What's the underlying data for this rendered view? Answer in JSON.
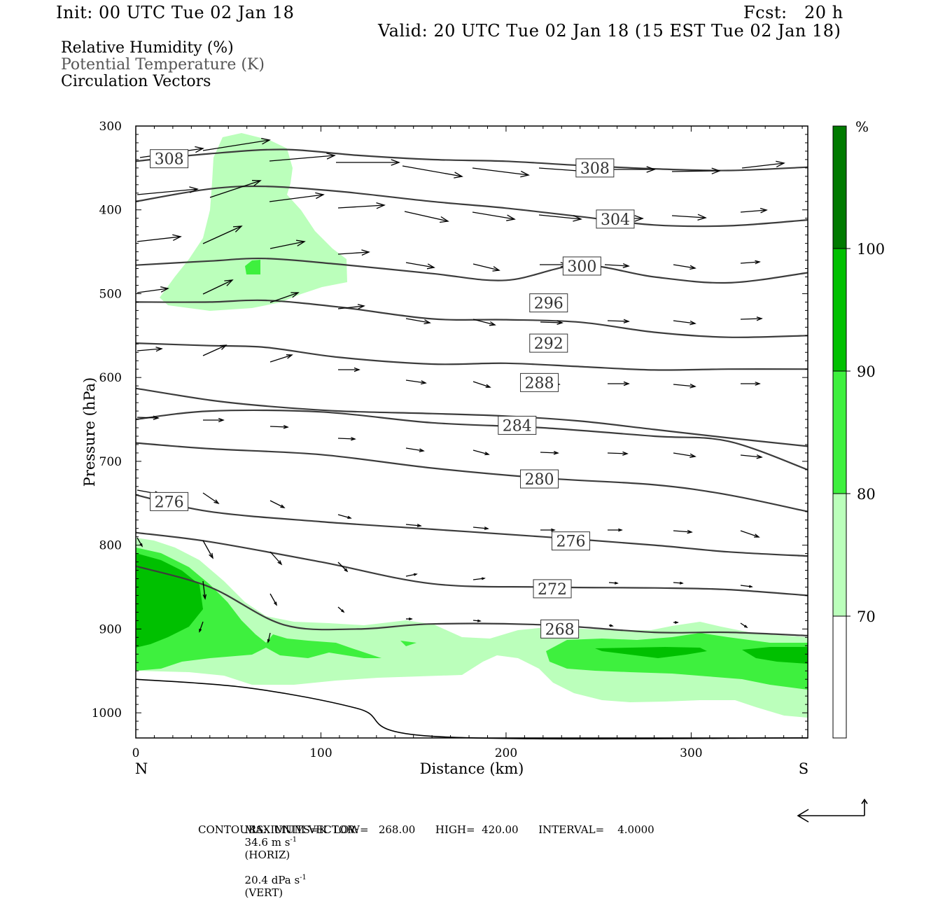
{
  "header": {
    "init": "Init: 00 UTC Tue 02 Jan 18",
    "fcst": "Fcst:   20 h",
    "valid": "Valid: 20 UTC Tue 02 Jan 18 (15 EST Tue 02 Jan 18)"
  },
  "legend": {
    "line1": "Relative Humidity (%)",
    "line2": "Potential Temperature (K)",
    "line3": "Circulation Vectors"
  },
  "footer": {
    "max_vector_label": "MAXIMUM VECTOR:",
    "max_vector_horiz": "34.6 m s",
    "horiz_tag": "(HORIZ)",
    "max_vector_vert": "20.4 dPa s",
    "vert_tag": "(VERT)",
    "contours": "CONTOURS:  UNITS=K  LOW=   268.00      HIGH=  420.00      INTERVAL=    4.0000"
  },
  "colors": {
    "rh70": "#bbffbb",
    "rh80": "#3ef03e",
    "rh90": "#00c000",
    "rh100": "#007a00",
    "theta_line": "#3c3c3c"
  },
  "chart_data": {
    "type": "cross-section",
    "xlabel": "Distance (km)",
    "ylabel": "Pressure (hPa)",
    "xlim": [
      0,
      363
    ],
    "ylim": [
      1030,
      300
    ],
    "x_ticks": [
      0,
      100,
      200,
      300
    ],
    "y_ticks": [
      300,
      400,
      500,
      600,
      700,
      800,
      900,
      1000
    ],
    "end_labels": {
      "left": "N",
      "right": "S"
    },
    "colorbar": {
      "unit": "%",
      "levels": [
        70,
        80,
        90,
        100
      ],
      "colors": [
        "#ffffff",
        "#bbffbb",
        "#3ef03e",
        "#00c000",
        "#007a00"
      ]
    },
    "theta_contours": [
      {
        "label": "308",
        "label_at": [
          18,
          339
        ],
        "points": [
          [
            0,
            342
          ],
          [
            40,
            333
          ],
          [
            80,
            328
          ],
          [
            120,
            335
          ],
          [
            160,
            340
          ],
          [
            200,
            342
          ],
          [
            240,
            347
          ],
          [
            280,
            351
          ],
          [
            320,
            353
          ],
          [
            363,
            349
          ]
        ]
      },
      {
        "label": "308",
        "label_at": [
          248,
          350
        ],
        "points": [
          [
            0,
            342
          ],
          [
            40,
            333
          ],
          [
            80,
            328
          ],
          [
            120,
            335
          ],
          [
            160,
            340
          ],
          [
            200,
            342
          ],
          [
            240,
            347
          ],
          [
            280,
            351
          ],
          [
            320,
            353
          ],
          [
            363,
            349
          ]
        ]
      },
      {
        "label": "304",
        "label_at": [
          259,
          411
        ],
        "points": [
          [
            0,
            390
          ],
          [
            40,
            375
          ],
          [
            70,
            372
          ],
          [
            110,
            378
          ],
          [
            160,
            390
          ],
          [
            200,
            398
          ],
          [
            240,
            408
          ],
          [
            280,
            418
          ],
          [
            320,
            419
          ],
          [
            363,
            412
          ]
        ]
      },
      {
        "label": "300",
        "label_at": [
          241,
          467
        ],
        "points": [
          [
            0,
            466
          ],
          [
            40,
            461
          ],
          [
            70,
            458
          ],
          [
            110,
            465
          ],
          [
            160,
            476
          ],
          [
            200,
            484
          ],
          [
            240,
            466
          ],
          [
            280,
            480
          ],
          [
            320,
            487
          ],
          [
            363,
            475
          ]
        ]
      },
      {
        "label": "296",
        "label_at": [
          223,
          511
        ],
        "points": [
          [
            0,
            510
          ],
          [
            40,
            510
          ],
          [
            70,
            508
          ],
          [
            110,
            516
          ],
          [
            160,
            530
          ],
          [
            200,
            531
          ],
          [
            240,
            534
          ],
          [
            280,
            546
          ],
          [
            320,
            552
          ],
          [
            363,
            550
          ]
        ]
      },
      {
        "label": "292",
        "label_at": [
          223,
          559
        ],
        "points": [
          [
            0,
            559
          ],
          [
            40,
            562
          ],
          [
            70,
            564
          ],
          [
            110,
            576
          ],
          [
            160,
            584
          ],
          [
            200,
            583
          ],
          [
            240,
            587
          ],
          [
            280,
            591
          ],
          [
            320,
            590
          ],
          [
            363,
            590
          ]
        ]
      },
      {
        "label": "288",
        "label_at": [
          218,
          606
        ],
        "points": [
          [
            0,
            613
          ],
          [
            40,
            627
          ],
          [
            70,
            634
          ],
          [
            110,
            640
          ],
          [
            160,
            643
          ],
          [
            200,
            646
          ],
          [
            240,
            652
          ],
          [
            280,
            662
          ],
          [
            320,
            672
          ],
          [
            363,
            682
          ]
        ]
      },
      {
        "label": "284",
        "label_at": [
          206,
          657
        ],
        "points": [
          [
            0,
            650
          ],
          [
            40,
            640
          ],
          [
            100,
            641
          ],
          [
            160,
            654
          ],
          [
            220,
            660
          ],
          [
            280,
            670
          ],
          [
            320,
            676
          ],
          [
            363,
            710
          ]
        ]
      },
      {
        "label": "280",
        "label_at": [
          218,
          721
        ],
        "points": [
          [
            0,
            678
          ],
          [
            40,
            685
          ],
          [
            100,
            692
          ],
          [
            160,
            708
          ],
          [
            220,
            720
          ],
          [
            280,
            728
          ],
          [
            320,
            740
          ],
          [
            363,
            760
          ]
        ]
      },
      {
        "label": "276",
        "label_at": [
          18,
          748
        ],
        "points": [
          [
            0,
            740
          ],
          [
            40,
            760
          ],
          [
            100,
            772
          ],
          [
            160,
            781
          ],
          [
            220,
            790
          ],
          [
            280,
            800
          ],
          [
            320,
            808
          ],
          [
            363,
            813
          ]
        ]
      },
      {
        "label": "276",
        "label_at": [
          235,
          795
        ],
        "points": [
          [
            0,
            740
          ],
          [
            40,
            760
          ],
          [
            100,
            772
          ],
          [
            160,
            781
          ],
          [
            220,
            790
          ],
          [
            280,
            800
          ],
          [
            320,
            808
          ],
          [
            363,
            813
          ]
        ]
      },
      {
        "label": "272",
        "label_at": [
          225,
          852
        ],
        "points": [
          [
            0,
            785
          ],
          [
            40,
            796
          ],
          [
            100,
            820
          ],
          [
            160,
            846
          ],
          [
            220,
            850
          ],
          [
            280,
            851
          ],
          [
            320,
            853
          ],
          [
            363,
            860
          ]
        ]
      },
      {
        "label": "268",
        "label_at": [
          229,
          900
        ],
        "points": [
          [
            0,
            825
          ],
          [
            40,
            850
          ],
          [
            80,
            895
          ],
          [
            120,
            900
          ],
          [
            160,
            894
          ],
          [
            220,
            895
          ],
          [
            280,
            904
          ],
          [
            320,
            904
          ],
          [
            363,
            908
          ]
        ]
      }
    ],
    "surface_line": [
      [
        0,
        960
      ],
      [
        60,
        970
      ],
      [
        120,
        995
      ],
      [
        160,
        1028
      ],
      [
        363,
        1030
      ]
    ]
  }
}
